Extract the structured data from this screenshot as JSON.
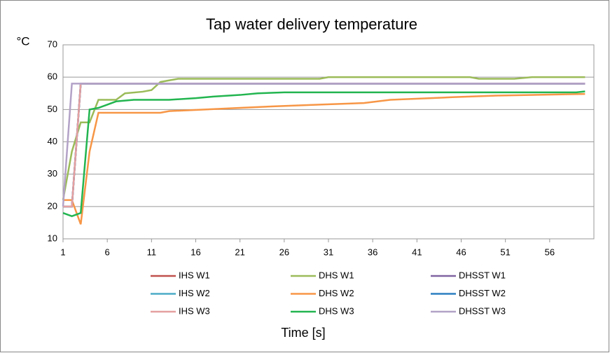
{
  "chart_data": {
    "type": "line",
    "title": "Tap water delivery temperature",
    "y_label": "°C",
    "x_label": "Time [s]",
    "xlim": [
      1,
      61
    ],
    "xticks": [
      1,
      6,
      11,
      16,
      21,
      26,
      31,
      36,
      41,
      46,
      51,
      56
    ],
    "ylim": [
      10,
      70
    ],
    "yticks": [
      10,
      20,
      30,
      40,
      50,
      60,
      70
    ],
    "grid": true,
    "legend": "bottom",
    "series": [
      {
        "name": "IHS W1",
        "color": "#c0504d",
        "x": [
          1,
          2,
          3,
          60
        ],
        "values": [
          20,
          20,
          58,
          58
        ]
      },
      {
        "name": "DHS W1",
        "color": "#9bbb59",
        "x": [
          1,
          2,
          3,
          4,
          5,
          7,
          8,
          10,
          11,
          12,
          13,
          14,
          30,
          31,
          47,
          48,
          52,
          54,
          60
        ],
        "values": [
          22,
          37,
          46,
          46,
          53,
          53,
          55,
          55.5,
          56,
          58.5,
          59,
          59.5,
          59.5,
          60,
          60,
          59.5,
          59.5,
          60,
          60
        ]
      },
      {
        "name": "DHSST W1",
        "color": "#8064a2",
        "x": [
          1,
          2,
          3,
          60
        ],
        "values": [
          20,
          20,
          58,
          58
        ]
      },
      {
        "name": "IHS W2",
        "color": "#4bacc6",
        "x": [
          1,
          2,
          3,
          60
        ],
        "values": [
          20,
          20,
          58,
          58
        ]
      },
      {
        "name": "DHS W2",
        "color": "#f79646",
        "x": [
          1,
          2,
          3,
          4,
          5,
          12,
          13,
          17,
          21,
          25,
          30,
          35,
          38,
          45,
          50,
          60
        ],
        "values": [
          22,
          22,
          14.5,
          37,
          49,
          49,
          49.5,
          50,
          50.5,
          51,
          51.5,
          52,
          53,
          53.8,
          54.3,
          54.8
        ]
      },
      {
        "name": "DHSST W2",
        "color": "#2c7fc2",
        "x": [
          1,
          2,
          3,
          60
        ],
        "values": [
          20,
          20,
          58,
          58
        ]
      },
      {
        "name": "IHS W3",
        "color": "#e6a0a0",
        "x": [
          1,
          2,
          3,
          60
        ],
        "values": [
          20,
          20,
          58,
          58
        ]
      },
      {
        "name": "DHS W3",
        "color": "#23b550",
        "x": [
          1,
          2,
          3,
          4,
          5,
          6,
          7,
          9,
          13,
          16,
          18,
          21,
          23,
          26,
          59,
          60
        ],
        "values": [
          18,
          17,
          18,
          50,
          50.5,
          51.5,
          52.5,
          53,
          53,
          53.5,
          54,
          54.5,
          55,
          55.3,
          55.3,
          55.6
        ]
      },
      {
        "name": "DHSST W3",
        "color": "#b3a2c7",
        "x": [
          1,
          2,
          60
        ],
        "values": [
          20,
          58,
          58
        ]
      }
    ]
  }
}
